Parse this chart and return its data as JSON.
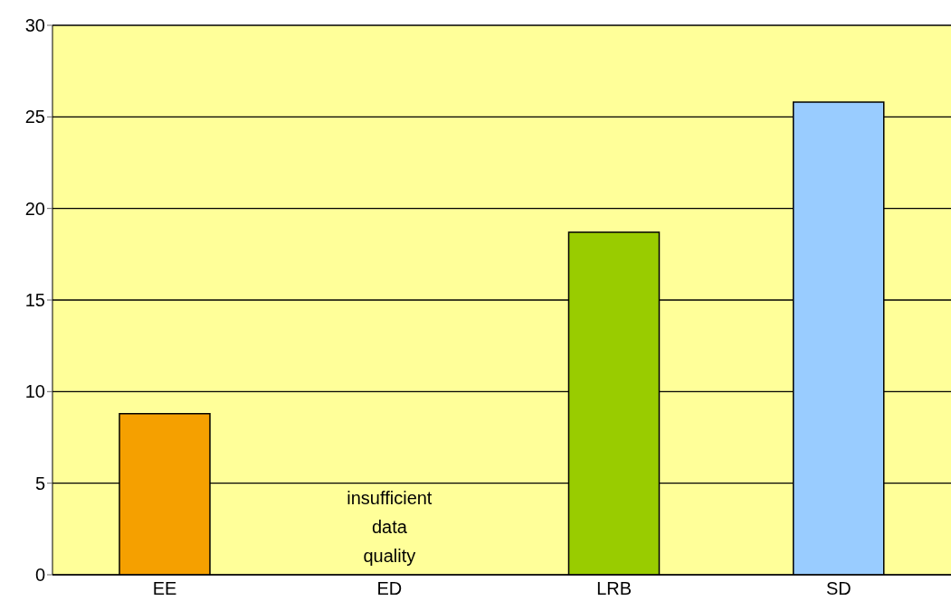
{
  "chart_data": {
    "type": "bar",
    "categories": [
      "EE",
      "ED",
      "LRB",
      "SD"
    ],
    "values": [
      8.8,
      null,
      18.7,
      25.8
    ],
    "colors": [
      "#f5a000",
      "#cccccc",
      "#99cc00",
      "#99ccff"
    ],
    "ylim": [
      0,
      30
    ],
    "yticks": [
      0,
      5,
      10,
      15,
      20,
      25,
      30
    ],
    "grid": "y",
    "annotations": [
      "insufficient data quality"
    ]
  }
}
